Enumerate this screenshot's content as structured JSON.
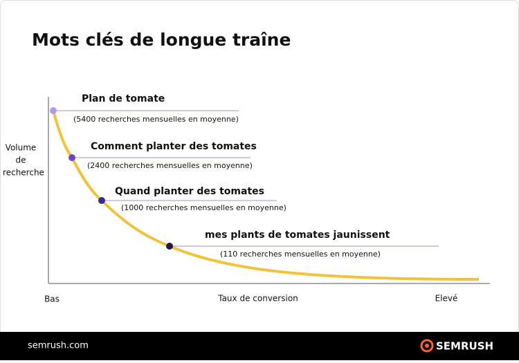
{
  "header": {
    "title": "Mots clés de longue traîne"
  },
  "axes": {
    "y_label": [
      "Volume",
      "de",
      "recherche"
    ],
    "x_low": "Bas",
    "x_label": "Taux de conversion",
    "x_high": "Elevé"
  },
  "keywords": [
    {
      "label": "Plan de tomate",
      "note": "(5400 recherches mensuelles en moyenne)"
    },
    {
      "label": "Comment planter des tomates",
      "note": "(2400 recherches mensuelles en moyenne)"
    },
    {
      "label": "Quand planter des tomates",
      "note": "(1000 recherches mensuelles en moyenne)"
    },
    {
      "label": "mes plants de tomates jaunissent",
      "note": "(110 recherches mensuelles en moyenne)"
    }
  ],
  "footer": {
    "site": "semrush.com",
    "brand": "SEMRUSH"
  }
}
